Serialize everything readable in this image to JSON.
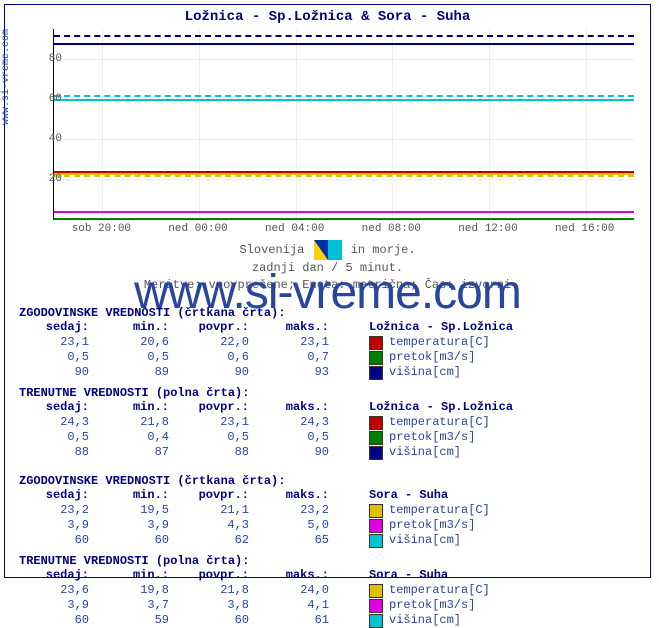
{
  "title": "Ložnica - Sp.Ložnica & Sora - Suha",
  "watermark": "www.si-vreme.com",
  "ylabel_side": "www.si-vreme.com",
  "chart": {
    "type": "line",
    "ylim": [
      0,
      95
    ],
    "ytick_step": 20,
    "yticks": [
      20,
      40,
      60,
      80
    ],
    "xticks": [
      "sob 20:00",
      "ned 00:00",
      "ned 04:00",
      "ned 08:00",
      "ned 12:00",
      "ned 16:00"
    ],
    "background_color": "#ffffff",
    "grid_color": "#eeeeee",
    "series": [
      {
        "label": "višina L solid",
        "color": "#000080",
        "style": "solid",
        "y": 88
      },
      {
        "label": "višina L dash",
        "color": "#000080",
        "style": "dashed",
        "y": 92
      },
      {
        "label": "višina S solid",
        "color": "#00c4cc",
        "style": "solid",
        "y": 60
      },
      {
        "label": "višina S dash",
        "color": "#00c4cc",
        "style": "dashed",
        "y": 62
      },
      {
        "label": "temp L solid",
        "color": "#c00000",
        "style": "solid",
        "y": 24
      },
      {
        "label": "temp L dash",
        "color": "#c00000",
        "style": "dashed",
        "y": 23
      },
      {
        "label": "temp S solid",
        "color": "#e0c000",
        "style": "solid",
        "y": 23
      },
      {
        "label": "temp S dash",
        "color": "#e0c000",
        "style": "dashed",
        "y": 22
      },
      {
        "label": "pretok L solid",
        "color": "#008000",
        "style": "solid",
        "y": 0.5
      },
      {
        "label": "pretok S solid",
        "color": "#e000e0",
        "style": "solid",
        "y": 4
      }
    ]
  },
  "caption": {
    "line1a": "Slovenija",
    "line1b": "in morje.",
    "line2": "zadnji dan / 5 minut.",
    "line3": "Meritve: vpovprečene; Enota: metrična; Čas: izvorni"
  },
  "sections": [
    {
      "head": "ZGODOVINSKE VREDNOSTI (črtkana črta):",
      "station": "Ložnica - Sp.Ložnica",
      "headers": [
        "sedaj:",
        "min.:",
        "povpr.:",
        "maks.:"
      ],
      "rows": [
        {
          "vals": [
            "23,1",
            "20,6",
            "22,0",
            "23,1"
          ],
          "sw": "#c00000",
          "lab": "temperatura[C]"
        },
        {
          "vals": [
            "0,5",
            "0,5",
            "0,6",
            "0,7"
          ],
          "sw": "#008000",
          "lab": "pretok[m3/s]"
        },
        {
          "vals": [
            "90",
            "89",
            "90",
            "93"
          ],
          "sw": "#000080",
          "lab": "višina[cm]"
        }
      ]
    },
    {
      "head": "TRENUTNE VREDNOSTI (polna črta):",
      "station": "Ložnica - Sp.Ložnica",
      "headers": [
        "sedaj:",
        "min.:",
        "povpr.:",
        "maks.:"
      ],
      "rows": [
        {
          "vals": [
            "24,3",
            "21,8",
            "23,1",
            "24,3"
          ],
          "sw": "#c00000",
          "lab": "temperatura[C]"
        },
        {
          "vals": [
            "0,5",
            "0,4",
            "0,5",
            "0,5"
          ],
          "sw": "#008000",
          "lab": "pretok[m3/s]"
        },
        {
          "vals": [
            "88",
            "87",
            "88",
            "90"
          ],
          "sw": "#000080",
          "lab": "višina[cm]"
        }
      ]
    },
    {
      "head": "ZGODOVINSKE VREDNOSTI (črtkana črta):",
      "station": "Sora - Suha",
      "headers": [
        "sedaj:",
        "min.:",
        "povpr.:",
        "maks.:"
      ],
      "rows": [
        {
          "vals": [
            "23,2",
            "19,5",
            "21,1",
            "23,2"
          ],
          "sw": "#e0c000",
          "lab": "temperatura[C]"
        },
        {
          "vals": [
            "3,9",
            "3,9",
            "4,3",
            "5,0"
          ],
          "sw": "#e000e0",
          "lab": "pretok[m3/s]"
        },
        {
          "vals": [
            "60",
            "60",
            "62",
            "65"
          ],
          "sw": "#00c4cc",
          "lab": "višina[cm]"
        }
      ]
    },
    {
      "head": "TRENUTNE VREDNOSTI (polna črta):",
      "station": "Sora - Suha",
      "headers": [
        "sedaj:",
        "min.:",
        "povpr.:",
        "maks.:"
      ],
      "rows": [
        {
          "vals": [
            "23,6",
            "19,8",
            "21,8",
            "24,0"
          ],
          "sw": "#e0c000",
          "lab": "temperatura[C]"
        },
        {
          "vals": [
            "3,9",
            "3,7",
            "3,8",
            "4,1"
          ],
          "sw": "#e000e0",
          "lab": "pretok[m3/s]"
        },
        {
          "vals": [
            "60",
            "59",
            "60",
            "61"
          ],
          "sw": "#00c4cc",
          "lab": "višina[cm]"
        }
      ]
    }
  ]
}
